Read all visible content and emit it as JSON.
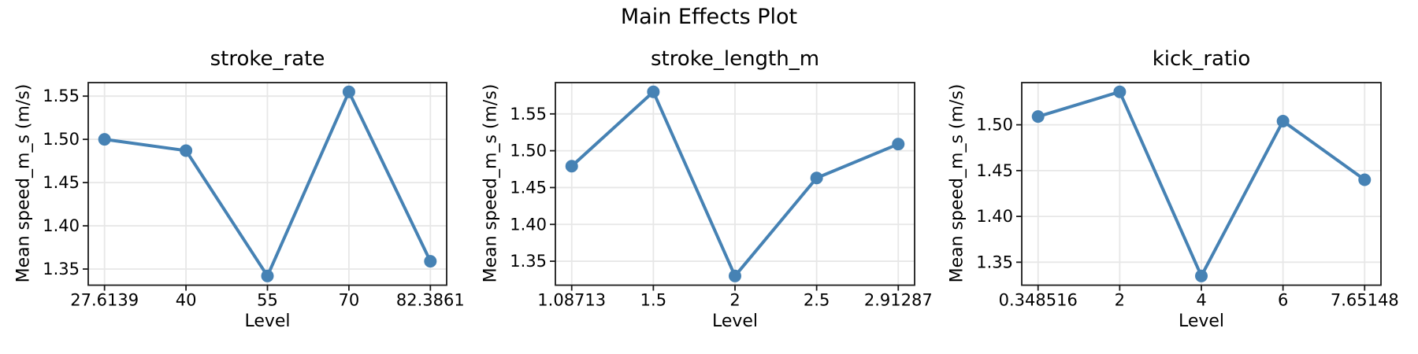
{
  "figure": {
    "title": "Main Effects Plot",
    "background": "#ffffff"
  },
  "style": {
    "line_color": "#4682B4",
    "grid_color": "#e7e7e7",
    "spine_color": "#1a1a1a",
    "tick_color": "#1a1a1a",
    "text_color": "#000000"
  },
  "chart_data": [
    {
      "type": "line",
      "title": "stroke_rate",
      "xlabel": "Level",
      "ylabel": "Mean speed_m_s (m/s)",
      "categories": [
        "27.6139",
        "40",
        "55",
        "70",
        "82.3861"
      ],
      "values": [
        1.5,
        1.487,
        1.342,
        1.555,
        1.359
      ],
      "y_ticks": [
        1.35,
        1.4,
        1.45,
        1.5,
        1.55
      ],
      "y_tick_labels": [
        "1.35",
        "1.40",
        "1.45",
        "1.50",
        "1.55"
      ],
      "ylim": [
        1.33135,
        1.56565
      ],
      "grid": true,
      "legend": false,
      "marker": "circle",
      "line_color": "#4682B4"
    },
    {
      "type": "line",
      "title": "stroke_length_m",
      "xlabel": "Level",
      "ylabel": "Mean speed_m_s (m/s)",
      "categories": [
        "1.08713",
        "1.5",
        "2",
        "2.5",
        "2.91287"
      ],
      "values": [
        1.479,
        1.58,
        1.33,
        1.463,
        1.509
      ],
      "y_ticks": [
        1.35,
        1.4,
        1.45,
        1.5,
        1.55
      ],
      "y_tick_labels": [
        "1.35",
        "1.40",
        "1.45",
        "1.50",
        "1.55"
      ],
      "ylim": [
        1.3175,
        1.5925
      ],
      "grid": true,
      "legend": false,
      "marker": "circle",
      "line_color": "#4682B4"
    },
    {
      "type": "line",
      "title": "kick_ratio",
      "xlabel": "Level",
      "ylabel": "Mean speed_m_s (m/s)",
      "categories": [
        "0.348516",
        "2",
        "4",
        "6",
        "7.65148"
      ],
      "values": [
        1.509,
        1.536,
        1.335,
        1.504,
        1.44
      ],
      "y_ticks": [
        1.35,
        1.4,
        1.45,
        1.5
      ],
      "y_tick_labels": [
        "1.35",
        "1.40",
        "1.45",
        "1.50"
      ],
      "ylim": [
        1.32495,
        1.54605
      ],
      "grid": true,
      "legend": false,
      "marker": "circle",
      "line_color": "#4682B4"
    }
  ]
}
